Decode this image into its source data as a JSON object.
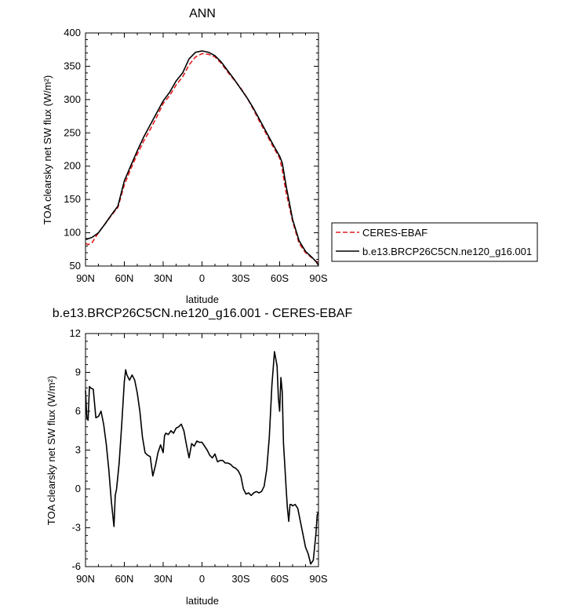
{
  "chart_data": [
    {
      "type": "line",
      "title": "ANN",
      "xlabel": "latitude",
      "ylabel": "TOA clearsky net SW flux (W/m²)",
      "xlim": [
        90,
        -90
      ],
      "ylim": [
        50,
        400
      ],
      "xticks": [
        "90N",
        "60N",
        "30N",
        "0",
        "30S",
        "60S",
        "90S"
      ],
      "yticks": [
        "400",
        "350",
        "300",
        "250",
        "200",
        "150",
        "100",
        "50"
      ],
      "legend": {
        "position": "right",
        "entries": [
          "CERES-EBAF",
          "b.e13.BRCP26C5CN.ne120_g16.001"
        ]
      },
      "series": [
        {
          "name": "CERES-EBAF",
          "color": "#e41a1c",
          "dash": "dashed",
          "x": [
            90,
            88,
            85,
            80,
            75,
            70,
            65,
            60,
            55,
            50,
            45,
            40,
            35,
            30,
            25,
            20,
            15,
            10,
            5,
            0,
            -5,
            -10,
            -15,
            -20,
            -25,
            -30,
            -35,
            -40,
            -45,
            -50,
            -55,
            -60,
            -62,
            -65,
            -70,
            -75,
            -80,
            -85,
            -88,
            -90
          ],
          "y": [
            84,
            82,
            85,
            100,
            113,
            126,
            138,
            172,
            196,
            218,
            238,
            255,
            274,
            294,
            306,
            322,
            334,
            352,
            364,
            369,
            368,
            364,
            354,
            341,
            329,
            317,
            302,
            284,
            265,
            247,
            229,
            212,
            195,
            160,
            117,
            84,
            70,
            62,
            57,
            56
          ]
        },
        {
          "name": "b.e13.BRCP26C5CN.ne120_g16.001",
          "color": "#000000",
          "dash": "solid",
          "x": [
            90,
            88,
            85,
            80,
            75,
            70,
            65,
            60,
            55,
            50,
            45,
            40,
            35,
            30,
            25,
            20,
            15,
            10,
            5,
            0,
            -5,
            -10,
            -15,
            -20,
            -25,
            -30,
            -35,
            -40,
            -45,
            -50,
            -55,
            -60,
            -62,
            -65,
            -70,
            -75,
            -80,
            -85,
            -88,
            -90
          ],
          "y": [
            91,
            91,
            93,
            100,
            113,
            127,
            140,
            178,
            201,
            223,
            244,
            262,
            280,
            298,
            311,
            328,
            340,
            361,
            371,
            373,
            371,
            366,
            356,
            343,
            330,
            316,
            302,
            286,
            268,
            250,
            232,
            215,
            205,
            170,
            120,
            88,
            72,
            63,
            57,
            51
          ]
        }
      ]
    },
    {
      "type": "line",
      "title": "b.e13.BRCP26C5CN.ne120_g16.001 - CERES-EBAF",
      "xlabel": "latitude",
      "ylabel": "TOA clearsky net SW flux (W/m²)",
      "xlim": [
        90,
        -90
      ],
      "ylim": [
        -6,
        12
      ],
      "xticks": [
        "90N",
        "60N",
        "30N",
        "0",
        "30S",
        "60S",
        "90S"
      ],
      "yticks": [
        "12",
        "9",
        "6",
        "3",
        "0",
        "-3",
        "-6"
      ],
      "series": [
        {
          "color": "#000000",
          "dash": "solid",
          "x": [
            90,
            89,
            88,
            87,
            86,
            84,
            82,
            80,
            78,
            76,
            74,
            72,
            70,
            68,
            67,
            66,
            64,
            62,
            60,
            59,
            58,
            56,
            54,
            52,
            50,
            48,
            46,
            44,
            42,
            40,
            38,
            36,
            34,
            32,
            30,
            29,
            28,
            26,
            24,
            22,
            20,
            18,
            16,
            14,
            12,
            10,
            8,
            6,
            4,
            2,
            0,
            -2,
            -4,
            -6,
            -8,
            -10,
            -12,
            -14,
            -16,
            -18,
            -20,
            -22,
            -24,
            -26,
            -28,
            -30,
            -32,
            -34,
            -36,
            -38,
            -40,
            -42,
            -44,
            -46,
            -48,
            -50,
            -52,
            -54,
            -56,
            -58,
            -59,
            -60,
            -61,
            -62,
            -63,
            -64,
            -65,
            -66,
            -67,
            -68,
            -69,
            -70,
            -72,
            -74,
            -76,
            -78,
            -80,
            -82,
            -84,
            -86,
            -88,
            -89,
            -90
          ],
          "y": [
            7.6,
            5.5,
            5.3,
            7.9,
            7.8,
            7.7,
            5.5,
            5.6,
            6.0,
            5.0,
            3.5,
            1.5,
            -1.0,
            -2.9,
            -0.5,
            0.0,
            2.0,
            5.0,
            8.3,
            9.2,
            8.8,
            8.4,
            8.8,
            8.4,
            7.4,
            6.0,
            4.0,
            2.8,
            2.6,
            2.5,
            1.0,
            1.8,
            2.8,
            3.4,
            2.8,
            4.1,
            4.3,
            4.2,
            4.5,
            4.3,
            4.7,
            4.8,
            5.0,
            4.5,
            3.4,
            2.4,
            3.5,
            3.3,
            3.7,
            3.6,
            3.6,
            3.3,
            3.0,
            2.6,
            2.4,
            2.7,
            2.1,
            2.2,
            2.2,
            2.0,
            2.0,
            1.9,
            1.7,
            1.6,
            1.4,
            1.0,
            0.0,
            -0.4,
            -0.3,
            -0.5,
            -0.3,
            -0.2,
            -0.3,
            -0.2,
            0.2,
            1.5,
            4.0,
            8.0,
            10.6,
            9.5,
            7.0,
            6.0,
            8.6,
            7.5,
            3.5,
            1.8,
            0.0,
            -1.5,
            -2.5,
            -1.2,
            -1.2,
            -1.3,
            -1.2,
            -1.5,
            -2.5,
            -3.5,
            -4.5,
            -5.0,
            -5.8,
            -5.5,
            -3.5,
            -2.0,
            -1.8
          ]
        }
      ]
    }
  ]
}
